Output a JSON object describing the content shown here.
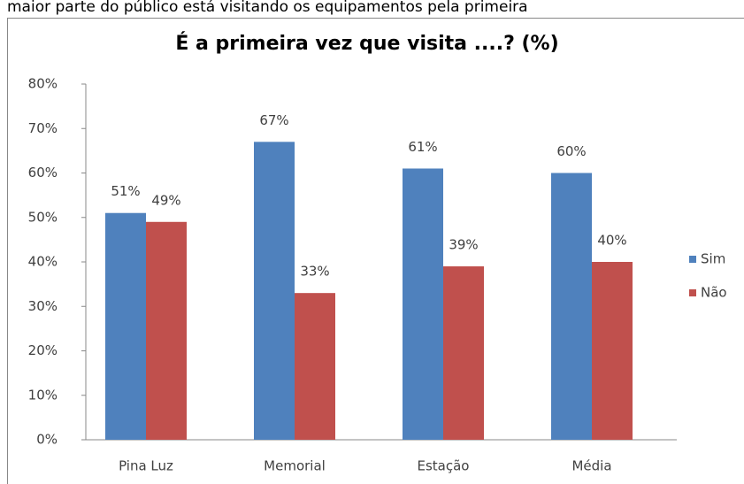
{
  "caption": "maior parte do público está visitando os equipamentos pela primeira",
  "chart_data": {
    "type": "bar",
    "title": "É a primeira vez que visita ....? (%)",
    "categories": [
      "Pina Luz",
      "Memorial",
      "Estação",
      "Média"
    ],
    "series": [
      {
        "name": "Sim",
        "color": "#4f81bd",
        "values": [
          51,
          67,
          61,
          60
        ],
        "value_labels": [
          "51%",
          "67%",
          "61%",
          "60%"
        ]
      },
      {
        "name": "Não",
        "color": "#c0504d",
        "values": [
          49,
          33,
          39,
          40
        ],
        "value_labels": [
          "49%",
          "33%",
          "39%",
          "40%"
        ]
      }
    ],
    "ylim": [
      0,
      80
    ],
    "yticks": [
      {
        "value": 0,
        "label": "0%"
      },
      {
        "value": 10,
        "label": "10%"
      },
      {
        "value": 20,
        "label": "20%"
      },
      {
        "value": 30,
        "label": "30%"
      },
      {
        "value": 40,
        "label": "40%"
      },
      {
        "value": 50,
        "label": "50%"
      },
      {
        "value": 60,
        "label": "60%"
      },
      {
        "value": 70,
        "label": "70%"
      },
      {
        "value": 80,
        "label": "80%"
      }
    ],
    "legend": "right"
  }
}
